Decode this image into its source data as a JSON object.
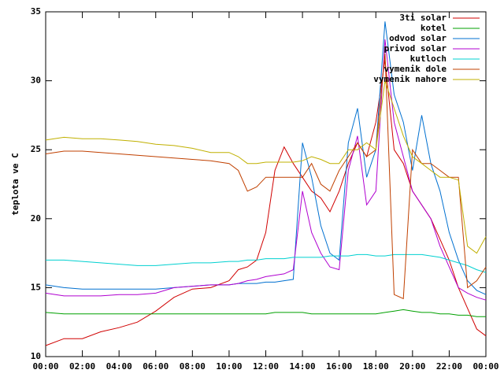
{
  "chart_data": {
    "type": "line",
    "ylabel": "teplota ve C",
    "x": [
      0,
      1,
      2,
      3,
      4,
      5,
      6,
      7,
      8,
      9,
      10,
      10.5,
      11,
      11.5,
      12,
      12.5,
      13,
      13.5,
      14,
      14.5,
      15,
      15.5,
      16,
      16.5,
      17,
      17.5,
      18,
      18.5,
      19,
      19.5,
      20,
      20.5,
      21,
      21.5,
      22,
      22.5,
      23,
      23.5,
      24
    ],
    "xlim": [
      0,
      24
    ],
    "xticks": [
      {
        "value": 0,
        "label": "00:00"
      },
      {
        "value": 2,
        "label": "02:00"
      },
      {
        "value": 4,
        "label": "04:00"
      },
      {
        "value": 6,
        "label": "06:00"
      },
      {
        "value": 8,
        "label": "08:00"
      },
      {
        "value": 10,
        "label": "10:00"
      },
      {
        "value": 12,
        "label": "12:00"
      },
      {
        "value": 14,
        "label": "14:00"
      },
      {
        "value": 16,
        "label": "16:00"
      },
      {
        "value": 18,
        "label": "18:00"
      },
      {
        "value": 20,
        "label": "20:00"
      },
      {
        "value": 22,
        "label": "22:00"
      },
      {
        "value": 24,
        "label": "00:00"
      }
    ],
    "ylim": [
      10,
      35
    ],
    "yticks": [
      10,
      15,
      20,
      25,
      30,
      35
    ],
    "grid": false,
    "legend": "top-right",
    "series": [
      {
        "name": "3ti solar",
        "color": "#d00000",
        "values": [
          10.8,
          11.3,
          11.3,
          11.8,
          12.1,
          12.5,
          13.3,
          14.3,
          14.9,
          15,
          15.5,
          16.3,
          16.5,
          17,
          19,
          23.5,
          25.2,
          24,
          23,
          22,
          21.5,
          20.5,
          22,
          24,
          25.5,
          24.5,
          27,
          31.5,
          25,
          24,
          22,
          21,
          20,
          18.5,
          17,
          15,
          13.5,
          12,
          11.5
        ]
      },
      {
        "name": "kotel",
        "color": "#00a000",
        "values": [
          13.2,
          13.1,
          13.1,
          13.1,
          13.1,
          13.1,
          13.1,
          13.1,
          13.1,
          13.1,
          13.1,
          13.1,
          13.1,
          13.1,
          13.1,
          13.2,
          13.2,
          13.2,
          13.2,
          13.1,
          13.1,
          13.1,
          13.1,
          13.1,
          13.1,
          13.1,
          13.1,
          13.2,
          13.3,
          13.4,
          13.3,
          13.2,
          13.2,
          13.1,
          13.1,
          13,
          13,
          12.9,
          12.9
        ]
      },
      {
        "name": "odvod solar",
        "color": "#0070d0",
        "values": [
          15.2,
          15,
          14.9,
          14.9,
          14.9,
          14.9,
          14.9,
          15,
          15.1,
          15.2,
          15.2,
          15.3,
          15.3,
          15.3,
          15.4,
          15.4,
          15.5,
          15.6,
          25.5,
          23,
          19.5,
          17.5,
          17,
          25.5,
          28,
          23,
          25,
          34.3,
          29,
          27,
          23.5,
          27.5,
          24,
          22,
          19,
          17,
          15.5,
          14.8,
          14.5
        ]
      },
      {
        "name": "privod solar",
        "color": "#b000d0",
        "values": [
          14.6,
          14.4,
          14.4,
          14.4,
          14.5,
          14.5,
          14.6,
          15,
          15.1,
          15.2,
          15.2,
          15.3,
          15.5,
          15.6,
          15.8,
          15.9,
          16,
          16.3,
          22,
          19,
          17.5,
          16.5,
          16.3,
          23.5,
          26,
          21,
          22,
          33,
          27,
          24.5,
          22,
          21,
          20,
          18,
          16.5,
          15,
          14.6,
          14.3,
          14.1
        ]
      },
      {
        "name": "kutloch",
        "color": "#00d0d0",
        "values": [
          17,
          17,
          16.9,
          16.8,
          16.7,
          16.6,
          16.6,
          16.7,
          16.8,
          16.8,
          16.9,
          16.9,
          17,
          17,
          17.1,
          17.1,
          17.1,
          17.2,
          17.2,
          17.2,
          17.2,
          17.3,
          17.3,
          17.3,
          17.4,
          17.4,
          17.3,
          17.3,
          17.4,
          17.4,
          17.4,
          17.4,
          17.3,
          17.2,
          17,
          16.8,
          16.6,
          16.3,
          16.1
        ]
      },
      {
        "name": "vymenik dole",
        "color": "#c04000",
        "values": [
          24.7,
          24.9,
          24.9,
          24.8,
          24.7,
          24.6,
          24.5,
          24.4,
          24.3,
          24.2,
          24,
          23.5,
          22,
          22.3,
          23,
          23,
          23,
          23,
          23,
          24,
          22.5,
          22,
          23.5,
          24.5,
          25.5,
          24.5,
          25,
          32,
          14.5,
          14.2,
          25,
          24,
          24,
          23.5,
          23,
          23,
          15,
          15.5,
          16.5
        ]
      },
      {
        "name": "vymenik nahore",
        "color": "#c0b000",
        "values": [
          25.7,
          25.9,
          25.8,
          25.8,
          25.7,
          25.6,
          25.4,
          25.3,
          25.1,
          24.8,
          24.8,
          24.5,
          24,
          24,
          24.1,
          24.1,
          24.1,
          24.1,
          24.2,
          24.5,
          24.3,
          24,
          24,
          25,
          25,
          25.5,
          25,
          30,
          28,
          26,
          24.5,
          24,
          23.5,
          23,
          23,
          22.8,
          18,
          17.5,
          18.7
        ]
      }
    ]
  }
}
